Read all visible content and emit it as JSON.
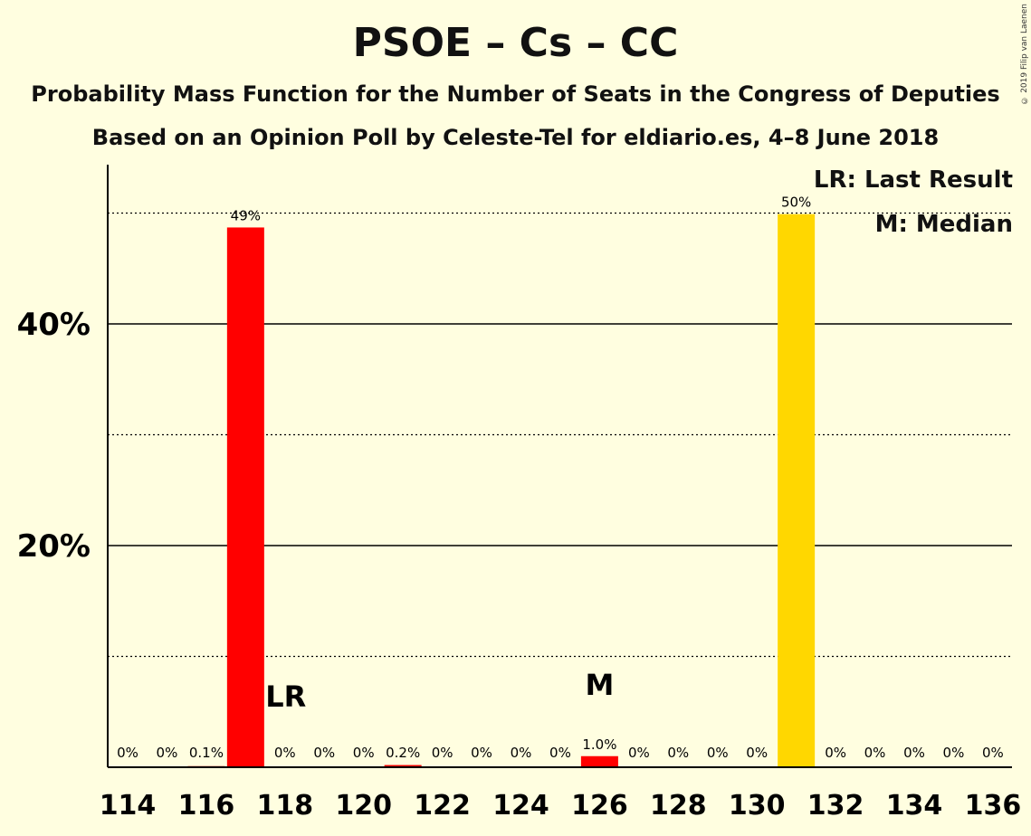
{
  "title": "PSOE – Cs – CC",
  "subtitle1": "Probability Mass Function for the Number of Seats in the Congress of Deputies",
  "subtitle2": "Based on an Opinion Poll by Celeste-Tel for eldiario.es, 4–8 June 2018",
  "copyright": "© 2019 Filip van Laenen",
  "legend": {
    "last_result": "LR: Last Result",
    "median": "M: Median"
  },
  "colors": {
    "background": "#FFFEE0",
    "bar_default": "#FF0000",
    "bar_highlight": "#FFD700"
  },
  "chart_data": {
    "type": "bar",
    "x": [
      114,
      115,
      116,
      117,
      118,
      119,
      120,
      121,
      122,
      123,
      124,
      125,
      126,
      127,
      128,
      129,
      130,
      131,
      132,
      133,
      134,
      135,
      136
    ],
    "values": [
      0,
      0,
      0.1,
      48.7,
      0,
      0,
      0,
      0.2,
      0,
      0,
      0,
      0,
      1.0,
      0,
      0,
      0,
      0,
      49.9,
      0,
      0,
      0,
      0,
      0
    ],
    "labels": [
      "0%",
      "0%",
      "0.1%",
      "49%",
      "0%",
      "0%",
      "0%",
      "0.2%",
      "0%",
      "0%",
      "0%",
      "0%",
      "1.0%",
      "0%",
      "0%",
      "0%",
      "0%",
      "50%",
      "0%",
      "0%",
      "0%",
      "0%",
      "0%"
    ],
    "highlight_seat": 131,
    "last_result_seat": 118,
    "median_seat": 126,
    "last_result_marker": "LR",
    "median_marker": "M",
    "x_ticks": [
      114,
      116,
      118,
      120,
      122,
      124,
      126,
      128,
      130,
      132,
      134,
      136
    ],
    "y_ticks_major": [
      20,
      40
    ],
    "y_tick_labels": [
      "20%",
      "40%"
    ],
    "y_ticks_minor": [
      10,
      30,
      50
    ],
    "ylim": [
      0,
      54
    ]
  }
}
